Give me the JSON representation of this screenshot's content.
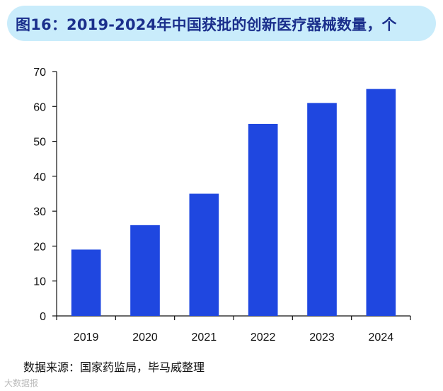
{
  "title": "图16：2019-2024年中国获批的创新医疗器械数量，个",
  "source": "数据来源：国家药监局，毕马威整理",
  "watermark": "大数据报",
  "colors": {
    "bar": "#1f47e0",
    "title_bg": "#c9ecfb",
    "title_text": "#1b2f8c"
  },
  "chart_data": {
    "type": "bar",
    "categories": [
      "2019",
      "2020",
      "2021",
      "2022",
      "2023",
      "2024"
    ],
    "values": [
      19,
      26,
      35,
      55,
      61,
      65
    ],
    "title": "图16：2019-2024年中国获批的创新医疗器械数量，个",
    "xlabel": "",
    "ylabel": "",
    "ylim": [
      0,
      70
    ],
    "yticks": [
      0,
      10,
      20,
      30,
      40,
      50,
      60,
      70
    ],
    "grid": false,
    "legend": "none"
  }
}
